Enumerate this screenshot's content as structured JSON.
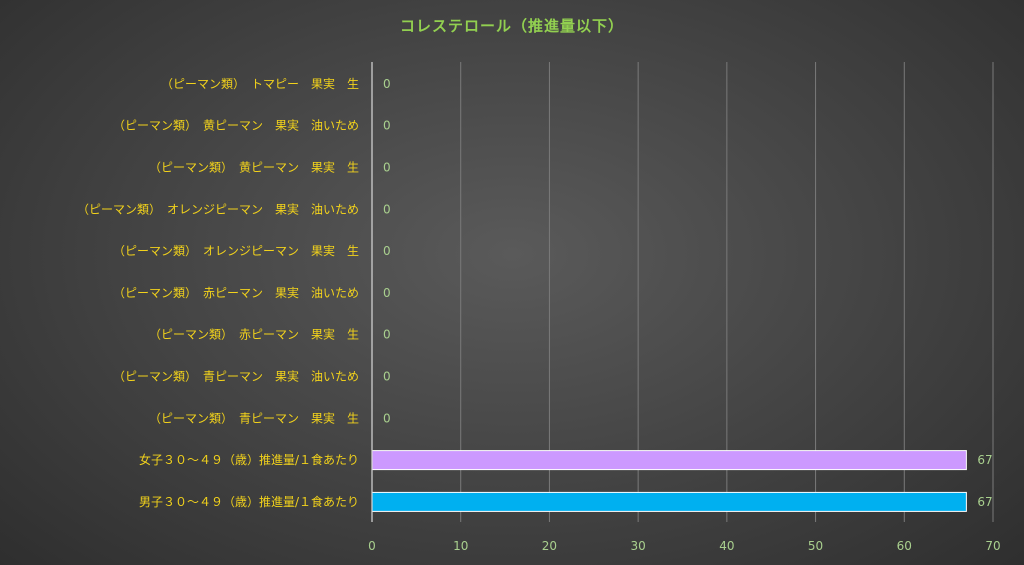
{
  "chart_data": {
    "type": "bar",
    "orientation": "horizontal",
    "title": "コレステロール（推進量以下）",
    "categories": [
      "（ピーマン類）　トマピー　果実　生",
      "（ピーマン類）　黄ピーマン　果実　油いため",
      "（ピーマン類）　黄ピーマン　果実　生",
      "（ピーマン類）　オレンジピーマン　果実　油いため",
      "（ピーマン類）　オレンジピーマン　果実　生",
      "（ピーマン類）　赤ピーマン　果実　油いため",
      "（ピーマン類）　赤ピーマン　果実　生",
      "（ピーマン類）　青ピーマン　果実　油いため",
      "（ピーマン類）　青ピーマン　果実　生",
      "女子３０～４９（歳）推進量/１食あたり",
      "男子３０～４９（歳）推進量/１食あたり"
    ],
    "values": [
      0,
      0,
      0,
      0,
      0,
      0,
      0,
      0,
      0,
      67,
      67
    ],
    "data_labels": [
      "0",
      "0",
      "0",
      "0",
      "0",
      "0",
      "0",
      "0",
      "0",
      "67",
      "67"
    ],
    "bar_colors": [
      "#ed7d31",
      "#ed7d31",
      "#ed7d31",
      "#ed7d31",
      "#ed7d31",
      "#ed7d31",
      "#ed7d31",
      "#ed7d31",
      "#ed7d31",
      "#cc99ff",
      "#00b0f0"
    ],
    "xlim": [
      0,
      70
    ],
    "xticks": [
      0,
      10,
      20,
      30,
      40,
      50,
      60,
      70
    ],
    "grid": true,
    "legend": "none"
  },
  "colors": {
    "title": "#92d050",
    "category_labels": "#f2d21b",
    "data_labels": "#a9d08e",
    "tick_labels": "#a9d08e",
    "gridline": "#7a7a7a",
    "axis": "#d9d9d9"
  }
}
